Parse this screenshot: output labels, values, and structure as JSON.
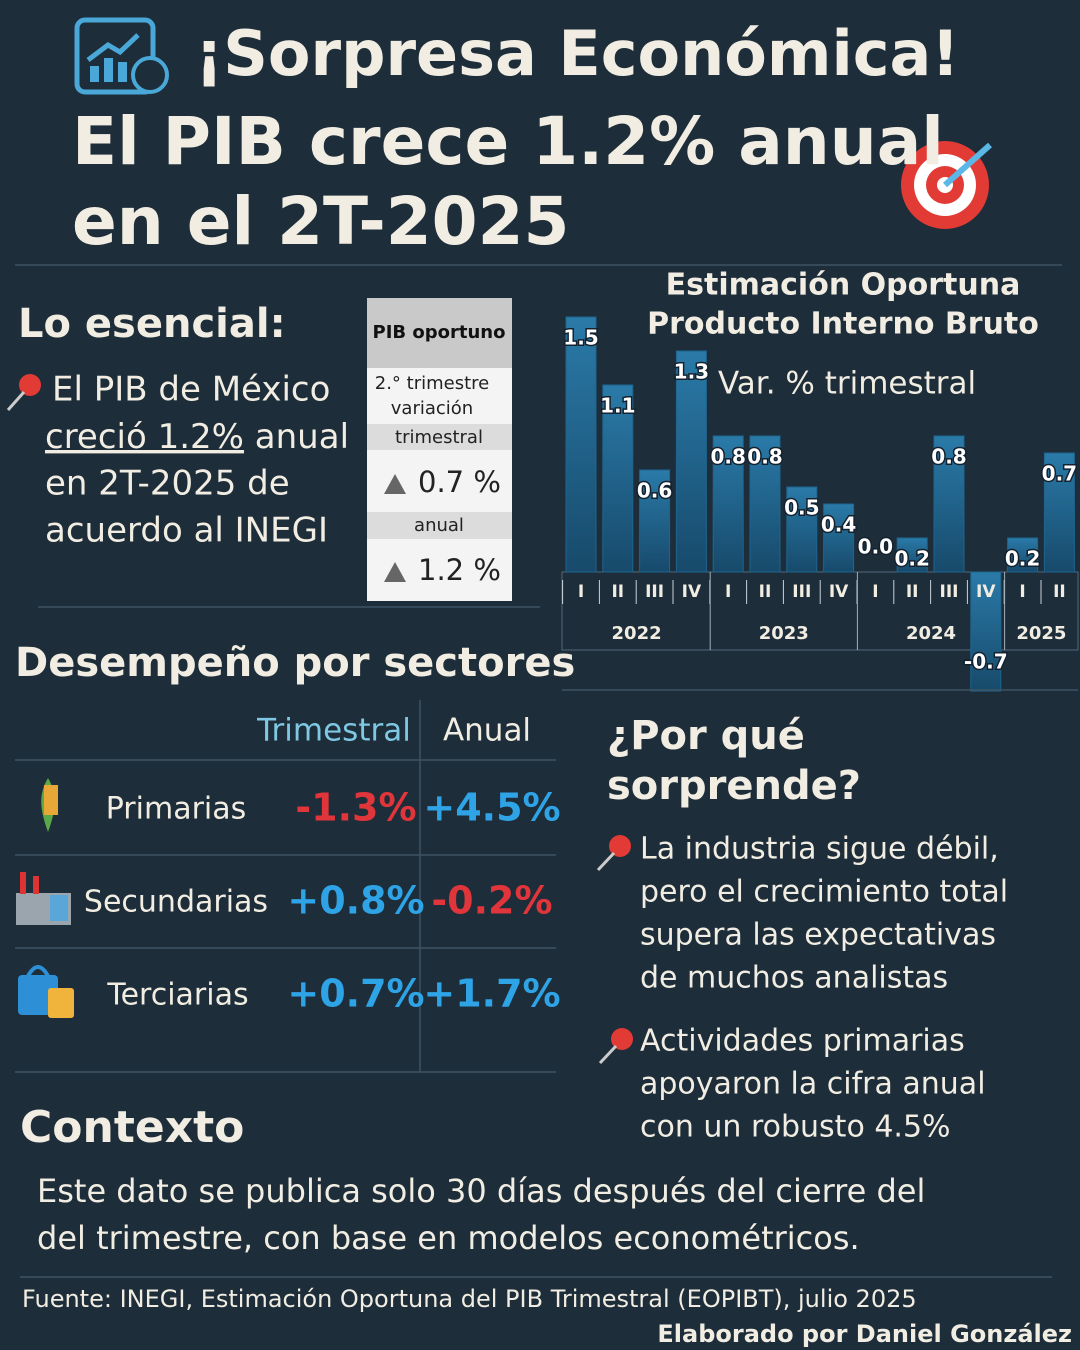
{
  "header": {
    "title_lines": [
      "¡Sorpresa Económica!",
      "El PIB crece 1.2% anual",
      "en el 2T-2025"
    ]
  },
  "essentials": {
    "heading": "Lo esencial:",
    "lines": [
      "El PIB de México",
      "creció 1.2%",
      "anual",
      "en 2T-2025 de",
      "acuerdo al INEGI"
    ]
  },
  "pib_box": {
    "header": "PIB oportuno",
    "label_lines": [
      "2.° trimestre",
      "variación",
      "trimestral"
    ],
    "quarterly": "0.7 %",
    "annual_label": "anual",
    "annual": "1.2 %"
  },
  "chart_data": {
    "type": "bar",
    "title_lines": [
      "Estimación Oportuna",
      "Producto Interno Bruto"
    ],
    "subtitle": "Var. % trimestral",
    "categories": [
      "I",
      "II",
      "III",
      "IV",
      "I",
      "II",
      "III",
      "IV",
      "I",
      "II",
      "III",
      "IV",
      "I",
      "II"
    ],
    "x_groups": [
      "2022",
      "2023",
      "2024",
      "2025"
    ],
    "values": [
      1.5,
      1.1,
      0.6,
      1.3,
      0.8,
      0.8,
      0.5,
      0.4,
      0.0,
      0.2,
      0.8,
      -0.7,
      0.2,
      0.7
    ],
    "value_labels": [
      "1.5",
      "1.1",
      "0.6",
      "1.3",
      "0.8",
      "0.8",
      "0.5",
      "0.4",
      "0.0",
      "0.2",
      "0.8",
      "-0.7",
      "0.2",
      "0.7"
    ],
    "ylim": [
      -0.8,
      1.6
    ],
    "color": "#1f6590"
  },
  "sectors": {
    "heading": "Desempeño por sectores",
    "columns": [
      "Trimestral",
      "Anual"
    ],
    "rows": [
      [
        "Primarias",
        "-1.3%",
        "+4.5%"
      ],
      [
        "Secundarias",
        "+0.8%",
        "-0.2%"
      ],
      [
        "Terciarias",
        "+0.7%",
        "+1.7%"
      ]
    ]
  },
  "why": {
    "heading_lines": [
      "¿Por qué",
      "sorprende?"
    ],
    "bullets": [
      [
        "La industria sigue débil,",
        "pero el crecimiento total",
        "supera las expectativas",
        "de muchos analistas"
      ],
      [
        "Actividades primarias",
        "apoyaron  la cifra anual",
        "con un robusto 4.5%"
      ]
    ]
  },
  "context": {
    "heading": "Contexto",
    "lines": [
      "Este dato se publica solo 30 días después del cierre del",
      "del trimestre, con base en modelos econométricos."
    ]
  },
  "footer": {
    "source": "Fuente: INEGI, Estimación Oportuna del PIB Trimestral (EOPIBT), julio 2025",
    "credit": "Elaborado por Daniel González"
  }
}
